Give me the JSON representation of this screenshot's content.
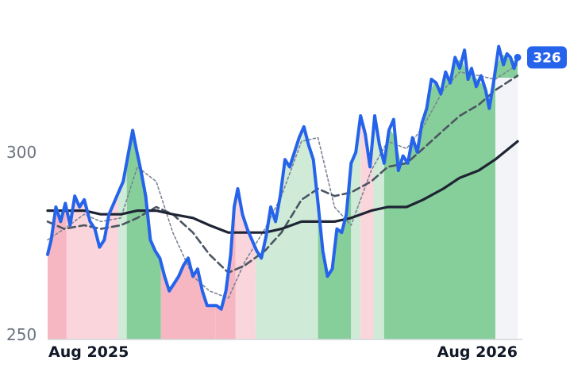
{
  "chart_data": {
    "type": "line",
    "ylim": [
      250,
      330
    ],
    "y_ticks": [
      {
        "value": 300,
        "label": "300"
      },
      {
        "value": 250,
        "label": "250"
      }
    ],
    "x_ticks": [
      {
        "date": "2025-08",
        "label": "Aug 2025"
      },
      {
        "date": "2026-08",
        "label": "Aug 2026"
      }
    ],
    "x_range": [
      "2025-07-01",
      "2026-08-31"
    ],
    "last_value_label": "326",
    "colors": {
      "price": "#2563eb",
      "sma_long": "#1e2433",
      "sma_mid": "#4b5563",
      "sma_short": "#7b8394",
      "up_zone": "#86cf9a",
      "up_zone_light": "#cfead6",
      "down_zone": "#f6b7c2",
      "down_zone_light": "#fbd5dc",
      "axis": "#d1d5db",
      "projection": "#f3f4f8"
    },
    "zones": [
      {
        "start": "2025-07-01",
        "end": "2025-07-17",
        "trend": "down",
        "strength": "strong"
      },
      {
        "start": "2025-07-17",
        "end": "2025-08-30",
        "trend": "down",
        "strength": "light"
      },
      {
        "start": "2025-08-30",
        "end": "2025-09-06",
        "trend": "up",
        "strength": "light"
      },
      {
        "start": "2025-09-06",
        "end": "2025-10-05",
        "trend": "up",
        "strength": "strong"
      },
      {
        "start": "2025-10-05",
        "end": "2025-11-20",
        "trend": "down",
        "strength": "strong"
      },
      {
        "start": "2025-11-20",
        "end": "2025-12-07",
        "trend": "down",
        "strength": "strong"
      },
      {
        "start": "2025-12-07",
        "end": "2025-12-24",
        "trend": "down",
        "strength": "light"
      },
      {
        "start": "2025-12-24",
        "end": "2026-02-15",
        "trend": "up",
        "strength": "light"
      },
      {
        "start": "2026-02-15",
        "end": "2026-03-15",
        "trend": "up",
        "strength": "strong"
      },
      {
        "start": "2026-03-15",
        "end": "2026-03-23",
        "trend": "up",
        "strength": "light"
      },
      {
        "start": "2026-03-23",
        "end": "2026-04-03",
        "trend": "down",
        "strength": "light"
      },
      {
        "start": "2026-04-03",
        "end": "2026-04-12",
        "trend": "up",
        "strength": "light"
      },
      {
        "start": "2026-04-12",
        "end": "2026-08-15",
        "trend": "up",
        "strength": "strong"
      }
    ],
    "series": [
      {
        "key": "price",
        "points": [
          [
            "2025-07-01",
            272
          ],
          [
            "2025-07-04",
            276
          ],
          [
            "2025-07-08",
            285
          ],
          [
            "2025-07-12",
            281
          ],
          [
            "2025-07-16",
            286
          ],
          [
            "2025-07-20",
            280
          ],
          [
            "2025-07-24",
            288
          ],
          [
            "2025-07-28",
            285
          ],
          [
            "2025-08-01",
            287
          ],
          [
            "2025-08-06",
            281
          ],
          [
            "2025-08-10",
            279
          ],
          [
            "2025-08-14",
            274
          ],
          [
            "2025-08-18",
            276
          ],
          [
            "2025-08-22",
            283
          ],
          [
            "2025-08-26",
            286
          ],
          [
            "2025-08-30",
            289
          ],
          [
            "2025-09-03",
            292
          ],
          [
            "2025-09-07",
            299
          ],
          [
            "2025-09-11",
            306
          ],
          [
            "2025-09-14",
            301
          ],
          [
            "2025-09-18",
            295
          ],
          [
            "2025-09-22",
            288
          ],
          [
            "2025-09-26",
            276
          ],
          [
            "2025-09-30",
            273
          ],
          [
            "2025-10-04",
            271
          ],
          [
            "2025-10-08",
            266
          ],
          [
            "2025-10-12",
            262
          ],
          [
            "2025-10-16",
            264
          ],
          [
            "2025-10-20",
            266
          ],
          [
            "2025-10-24",
            269
          ],
          [
            "2025-10-28",
            271
          ],
          [
            "2025-11-01",
            266
          ],
          [
            "2025-11-05",
            268
          ],
          [
            "2025-11-09",
            262
          ],
          [
            "2025-11-13",
            258
          ],
          [
            "2025-11-17",
            258
          ],
          [
            "2025-11-21",
            258
          ],
          [
            "2025-11-25",
            257
          ],
          [
            "2025-11-29",
            262
          ],
          [
            "2025-12-03",
            272
          ],
          [
            "2025-12-06",
            285
          ],
          [
            "2025-12-09",
            290
          ],
          [
            "2025-12-13",
            283
          ],
          [
            "2025-12-17",
            279
          ],
          [
            "2025-12-21",
            276
          ],
          [
            "2025-12-25",
            273
          ],
          [
            "2025-12-29",
            271
          ],
          [
            "2026-01-02",
            277
          ],
          [
            "2026-01-06",
            285
          ],
          [
            "2026-01-10",
            281
          ],
          [
            "2026-01-14",
            288
          ],
          [
            "2026-01-18",
            298
          ],
          [
            "2026-01-22",
            296
          ],
          [
            "2026-01-26",
            300
          ],
          [
            "2026-01-30",
            304
          ],
          [
            "2026-02-03",
            307
          ],
          [
            "2026-02-07",
            302
          ],
          [
            "2026-02-11",
            298
          ],
          [
            "2026-02-15",
            286
          ],
          [
            "2026-02-19",
            273
          ],
          [
            "2026-02-23",
            266
          ],
          [
            "2026-02-27",
            268
          ],
          [
            "2026-03-03",
            279
          ],
          [
            "2026-03-07",
            278
          ],
          [
            "2026-03-11",
            283
          ],
          [
            "2026-03-15",
            297
          ],
          [
            "2026-03-19",
            300
          ],
          [
            "2026-03-23",
            310
          ],
          [
            "2026-03-27",
            305
          ],
          [
            "2026-03-31",
            296
          ],
          [
            "2026-04-04",
            310
          ],
          [
            "2026-04-08",
            302
          ],
          [
            "2026-04-12",
            297
          ],
          [
            "2026-04-16",
            306
          ],
          [
            "2026-04-20",
            309
          ],
          [
            "2026-04-24",
            295
          ],
          [
            "2026-04-28",
            299
          ],
          [
            "2026-05-02",
            297
          ],
          [
            "2026-05-06",
            304
          ],
          [
            "2026-05-10",
            300
          ],
          [
            "2026-05-14",
            308
          ],
          [
            "2026-05-18",
            312
          ],
          [
            "2026-05-22",
            320
          ],
          [
            "2026-05-26",
            319
          ],
          [
            "2026-05-30",
            316
          ],
          [
            "2026-06-03",
            322
          ],
          [
            "2026-06-07",
            319
          ],
          [
            "2026-06-11",
            326
          ],
          [
            "2026-06-15",
            323
          ],
          [
            "2026-06-19",
            328
          ],
          [
            "2026-06-22",
            320
          ],
          [
            "2026-06-25",
            323
          ],
          [
            "2026-06-29",
            318
          ],
          [
            "2026-07-03",
            321
          ],
          [
            "2026-07-07",
            317
          ],
          [
            "2026-07-10",
            312
          ],
          [
            "2026-07-14",
            320
          ],
          [
            "2026-07-18",
            329
          ],
          [
            "2026-07-22",
            324
          ],
          [
            "2026-07-25",
            327
          ],
          [
            "2026-07-28",
            326
          ],
          [
            "2026-07-31",
            323
          ],
          [
            "2026-08-03",
            326
          ]
        ]
      },
      {
        "key": "sma_short",
        "points": [
          [
            "2025-07-01",
            276
          ],
          [
            "2025-07-15",
            279
          ],
          [
            "2025-08-01",
            283
          ],
          [
            "2025-08-15",
            281
          ],
          [
            "2025-09-01",
            282
          ],
          [
            "2025-09-15",
            296
          ],
          [
            "2025-10-01",
            292
          ],
          [
            "2025-10-15",
            278
          ],
          [
            "2025-11-01",
            266
          ],
          [
            "2025-11-15",
            262
          ],
          [
            "2025-12-01",
            260
          ],
          [
            "2025-12-15",
            270
          ],
          [
            "2026-01-01",
            279
          ],
          [
            "2026-01-15",
            288
          ],
          [
            "2026-02-01",
            303
          ],
          [
            "2026-02-15",
            304
          ],
          [
            "2026-03-01",
            285
          ],
          [
            "2026-03-15",
            280
          ],
          [
            "2026-04-01",
            295
          ],
          [
            "2026-04-15",
            303
          ],
          [
            "2026-05-01",
            301
          ],
          [
            "2026-05-15",
            307
          ],
          [
            "2026-06-01",
            317
          ],
          [
            "2026-06-15",
            322
          ],
          [
            "2026-07-01",
            321
          ],
          [
            "2026-07-15",
            320
          ],
          [
            "2026-08-03",
            324
          ]
        ]
      },
      {
        "key": "sma_mid",
        "points": [
          [
            "2025-07-01",
            281
          ],
          [
            "2025-07-15",
            279
          ],
          [
            "2025-08-01",
            280
          ],
          [
            "2025-08-15",
            279
          ],
          [
            "2025-09-01",
            280
          ],
          [
            "2025-09-15",
            282
          ],
          [
            "2025-10-01",
            285
          ],
          [
            "2025-10-15",
            283
          ],
          [
            "2025-11-01",
            278
          ],
          [
            "2025-11-15",
            272
          ],
          [
            "2025-12-01",
            267
          ],
          [
            "2025-12-15",
            269
          ],
          [
            "2026-01-01",
            273
          ],
          [
            "2026-01-15",
            278
          ],
          [
            "2026-02-01",
            287
          ],
          [
            "2026-02-15",
            290
          ],
          [
            "2026-03-01",
            288
          ],
          [
            "2026-03-15",
            289
          ],
          [
            "2026-04-01",
            292
          ],
          [
            "2026-04-15",
            296
          ],
          [
            "2026-05-01",
            297
          ],
          [
            "2026-05-15",
            301
          ],
          [
            "2026-06-01",
            306
          ],
          [
            "2026-06-15",
            310
          ],
          [
            "2026-07-01",
            313
          ],
          [
            "2026-07-15",
            317
          ],
          [
            "2026-08-03",
            321
          ]
        ]
      },
      {
        "key": "sma_long",
        "points": [
          [
            "2025-07-01",
            284
          ],
          [
            "2025-07-15",
            284
          ],
          [
            "2025-08-01",
            284
          ],
          [
            "2025-08-15",
            283
          ],
          [
            "2025-09-01",
            283
          ],
          [
            "2025-09-15",
            284
          ],
          [
            "2025-10-01",
            284
          ],
          [
            "2025-10-15",
            283
          ],
          [
            "2025-11-01",
            282
          ],
          [
            "2025-11-15",
            280
          ],
          [
            "2025-12-01",
            278
          ],
          [
            "2025-12-15",
            278
          ],
          [
            "2026-01-01",
            278
          ],
          [
            "2026-01-15",
            279
          ],
          [
            "2026-02-01",
            281
          ],
          [
            "2026-02-15",
            281
          ],
          [
            "2026-03-01",
            281
          ],
          [
            "2026-03-15",
            282
          ],
          [
            "2026-04-01",
            284
          ],
          [
            "2026-04-15",
            285
          ],
          [
            "2026-05-01",
            285
          ],
          [
            "2026-05-15",
            287
          ],
          [
            "2026-06-01",
            290
          ],
          [
            "2026-06-15",
            293
          ],
          [
            "2026-07-01",
            295
          ],
          [
            "2026-07-15",
            298
          ],
          [
            "2026-08-03",
            303
          ]
        ]
      }
    ]
  }
}
